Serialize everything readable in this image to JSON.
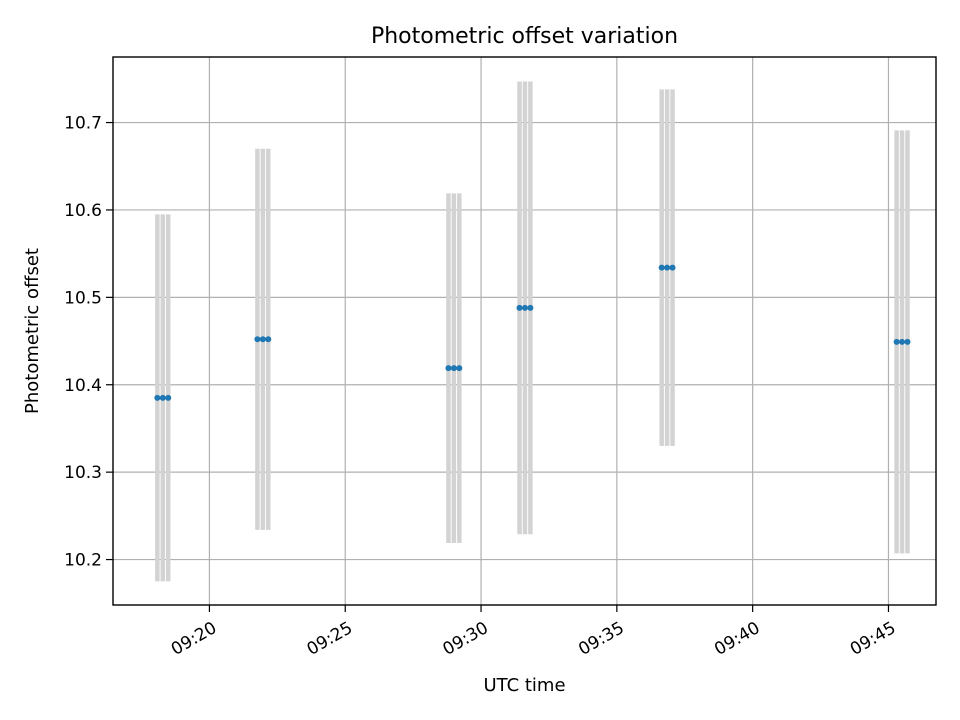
{
  "chart_data": {
    "type": "scatter",
    "title": "Photometric offset variation",
    "xlabel": "UTC time",
    "ylabel": "Photometric offset",
    "xlim": [
      "09:16:27",
      "09:46:45"
    ],
    "ylim": [
      10.148,
      10.775
    ],
    "x_ticks": [
      "09:20",
      "09:25",
      "09:30",
      "09:35",
      "09:40",
      "09:45"
    ],
    "y_ticks": [
      10.2,
      10.3,
      10.4,
      10.5,
      10.6,
      10.7
    ],
    "grid": true,
    "colors": {
      "points": "#1f77b4",
      "errorbars": "#d3d3d3"
    },
    "series": [
      {
        "points": [
          {
            "x": "09:18:05",
            "y": 10.385,
            "yerr": 0.21
          },
          {
            "x": "09:18:17",
            "y": 10.385,
            "yerr": 0.21
          },
          {
            "x": "09:18:29",
            "y": 10.385,
            "yerr": 0.21
          },
          {
            "x": "09:21:46",
            "y": 10.452,
            "yerr": 0.218
          },
          {
            "x": "09:21:58",
            "y": 10.452,
            "yerr": 0.218
          },
          {
            "x": "09:22:10",
            "y": 10.452,
            "yerr": 0.218
          },
          {
            "x": "09:28:48",
            "y": 10.419,
            "yerr": 0.2
          },
          {
            "x": "09:29:00",
            "y": 10.419,
            "yerr": 0.2
          },
          {
            "x": "09:29:12",
            "y": 10.419,
            "yerr": 0.2
          },
          {
            "x": "09:31:25",
            "y": 10.488,
            "yerr": 0.259
          },
          {
            "x": "09:31:37",
            "y": 10.488,
            "yerr": 0.259
          },
          {
            "x": "09:31:49",
            "y": 10.488,
            "yerr": 0.259
          },
          {
            "x": "09:36:39",
            "y": 10.534,
            "yerr": 0.204
          },
          {
            "x": "09:36:51",
            "y": 10.534,
            "yerr": 0.204
          },
          {
            "x": "09:37:03",
            "y": 10.534,
            "yerr": 0.204
          },
          {
            "x": "09:45:18",
            "y": 10.449,
            "yerr": 0.242
          },
          {
            "x": "09:45:30",
            "y": 10.449,
            "yerr": 0.242
          },
          {
            "x": "09:45:42",
            "y": 10.449,
            "yerr": 0.242
          }
        ]
      }
    ]
  }
}
